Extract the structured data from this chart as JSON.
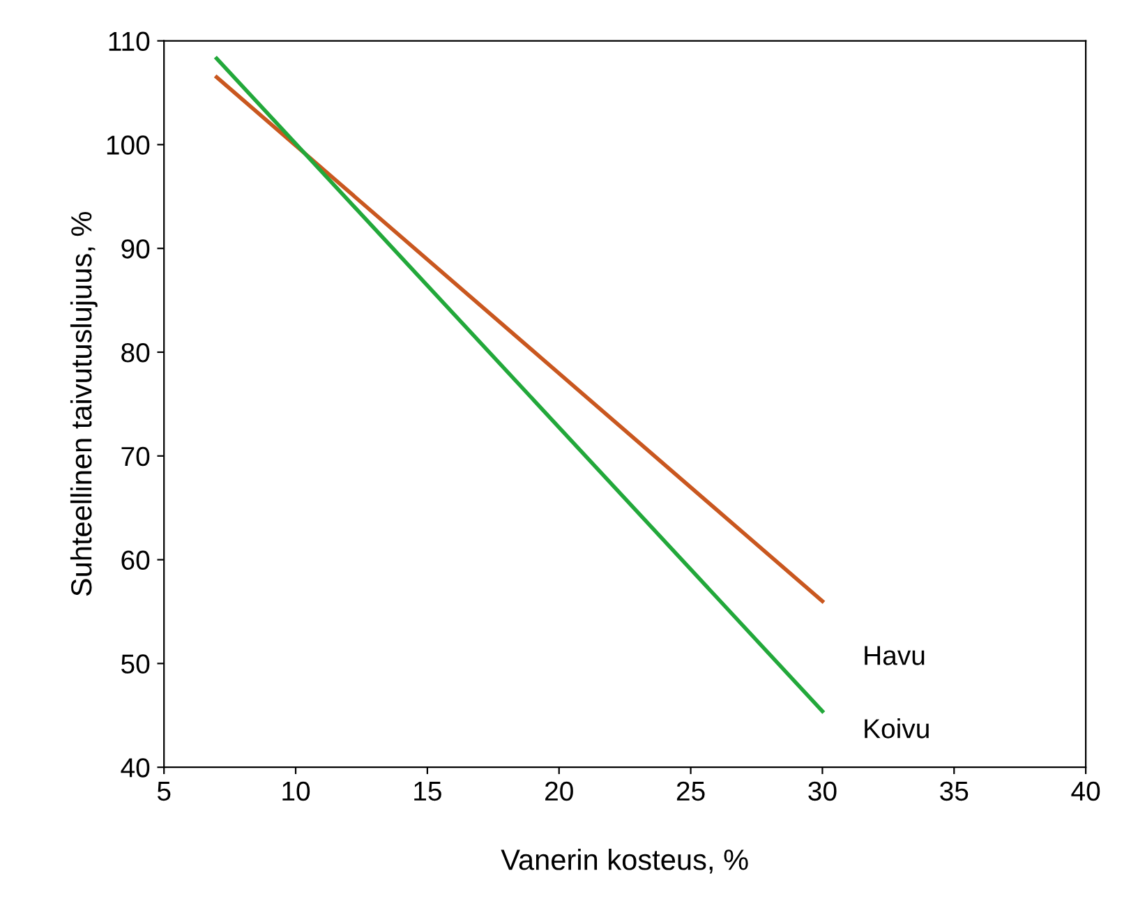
{
  "chart_data": {
    "type": "line",
    "xlabel": "Vanerin kosteus, %",
    "ylabel": "Suhteellinen taivutuslujuus, %",
    "x": [
      7,
      30
    ],
    "series": [
      {
        "name": "Havu",
        "color": "#c9571f",
        "values": [
          106.5,
          56
        ]
      },
      {
        "name": "Koivu",
        "color": "#22a83a",
        "values": [
          108.3,
          45.4
        ]
      }
    ],
    "xlim": [
      5,
      40
    ],
    "xticks": [
      5,
      10,
      15,
      20,
      25,
      30,
      35,
      40
    ],
    "ylim": [
      40,
      110
    ],
    "yticks": [
      40,
      50,
      60,
      70,
      80,
      90,
      100,
      110
    ],
    "grid": false,
    "legend": false,
    "marker": "none",
    "line_style": "solid"
  }
}
